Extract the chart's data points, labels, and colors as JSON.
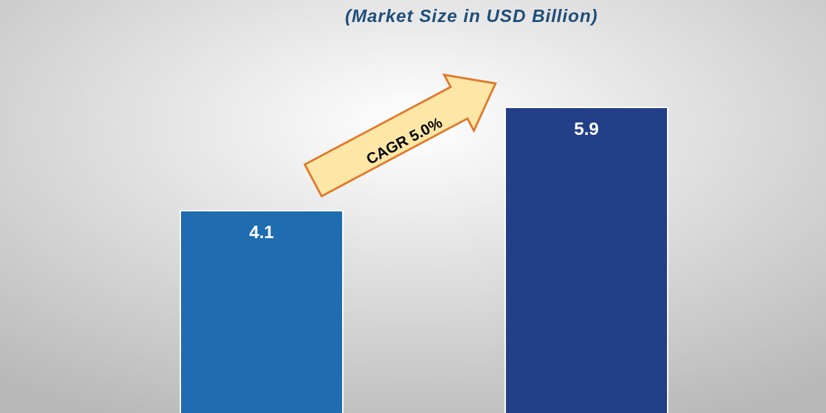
{
  "chart_data": {
    "type": "bar",
    "subtitle": "(Market Size in USD Billion)",
    "categories": [
      null,
      null
    ],
    "values": [
      4.1,
      5.9
    ],
    "colors": [
      "#1f6cb0",
      "#223f88"
    ],
    "data_labels": true,
    "annotations": [
      "CAGR 5.0%"
    ]
  }
}
